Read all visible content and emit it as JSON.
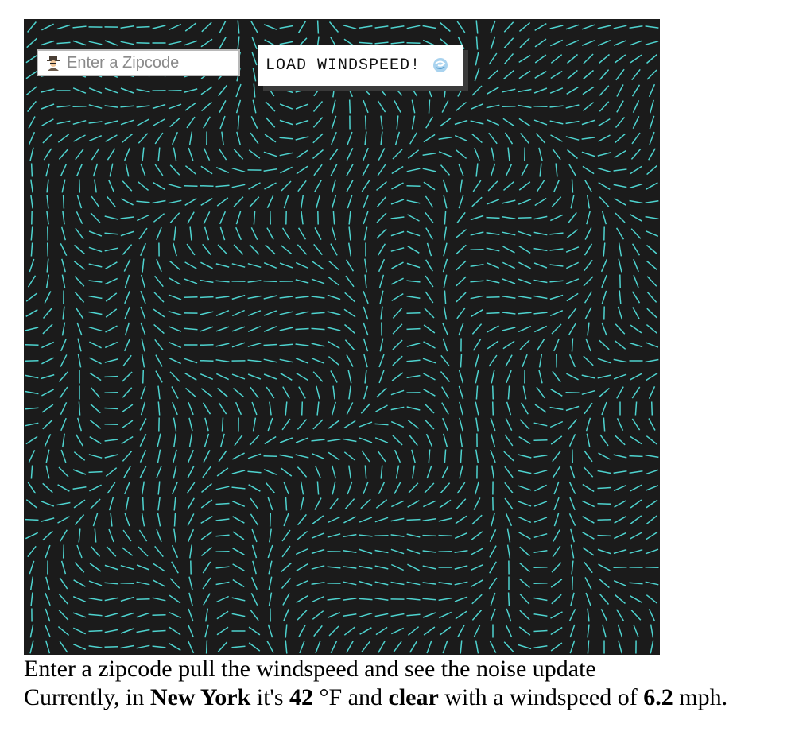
{
  "controls": {
    "zip_placeholder": "Enter a Zipcode",
    "zip_value": "",
    "load_button_label": "LOAD WINDSPEED!",
    "zip_icon": "detective-icon",
    "load_icon": "wind-swirl-icon"
  },
  "canvas": {
    "background": "#1b1b1b",
    "stroke_color": "#4ed3cf"
  },
  "instructions": "Enter a zipcode pull the windspeed and see the noise update",
  "status": {
    "prefix": "Currently, in",
    "city": "New York",
    "its": "it's",
    "temperature": "42",
    "temp_unit": "°F and",
    "condition": "clear",
    "windspeed_text": "with a windspeed of",
    "windspeed": "6.2",
    "windspeed_unit": "mph."
  }
}
